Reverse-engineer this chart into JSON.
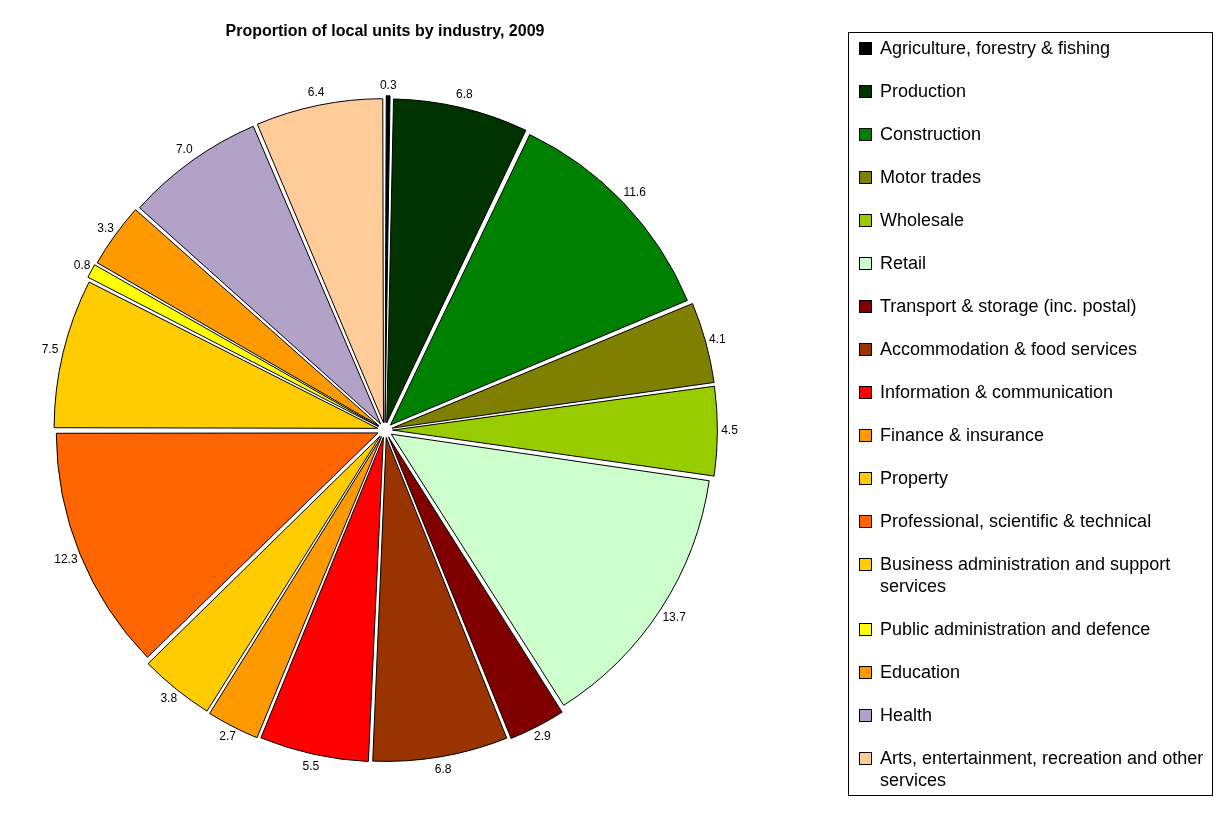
{
  "chart_data": {
    "type": "pie",
    "title": "Proportion of local units by industry, 2009",
    "categories": [
      "Agriculture, forestry & fishing",
      "Production",
      "Construction",
      "Motor trades",
      "Wholesale",
      "Retail",
      "Transport & storage (inc. postal)",
      "Accommodation & food services",
      "Information & communication",
      "Finance & insurance",
      "Property",
      "Professional, scientific & technical",
      "Business administration and support services",
      "Public administration and defence",
      "Education",
      "Health",
      "Arts, entertainment, recreation and other services"
    ],
    "values": [
      0.3,
      6.8,
      11.6,
      4.1,
      4.5,
      13.7,
      2.9,
      6.8,
      5.5,
      2.7,
      3.8,
      12.3,
      7.5,
      0.8,
      3.3,
      7.0,
      6.4
    ],
    "value_labels": [
      "0.3",
      "6.8",
      "11.6",
      "4.1",
      "4.5",
      "13.7",
      "2.9",
      "6.8",
      "5.5",
      "2.7",
      "3.8",
      "12.3",
      "7.5",
      "0.8",
      "3.3",
      "7.0",
      "6.4"
    ],
    "colors": [
      "#000000",
      "#003300",
      "#008000",
      "#808000",
      "#99cc00",
      "#ccffcc",
      "#800000",
      "#993300",
      "#ff0000",
      "#ff9900",
      "#ffcc00",
      "#ff6600",
      "#ffcc00",
      "#ffff00",
      "#ff9900",
      "#b3a2c7",
      "#ffcc99"
    ],
    "legend": "right"
  }
}
